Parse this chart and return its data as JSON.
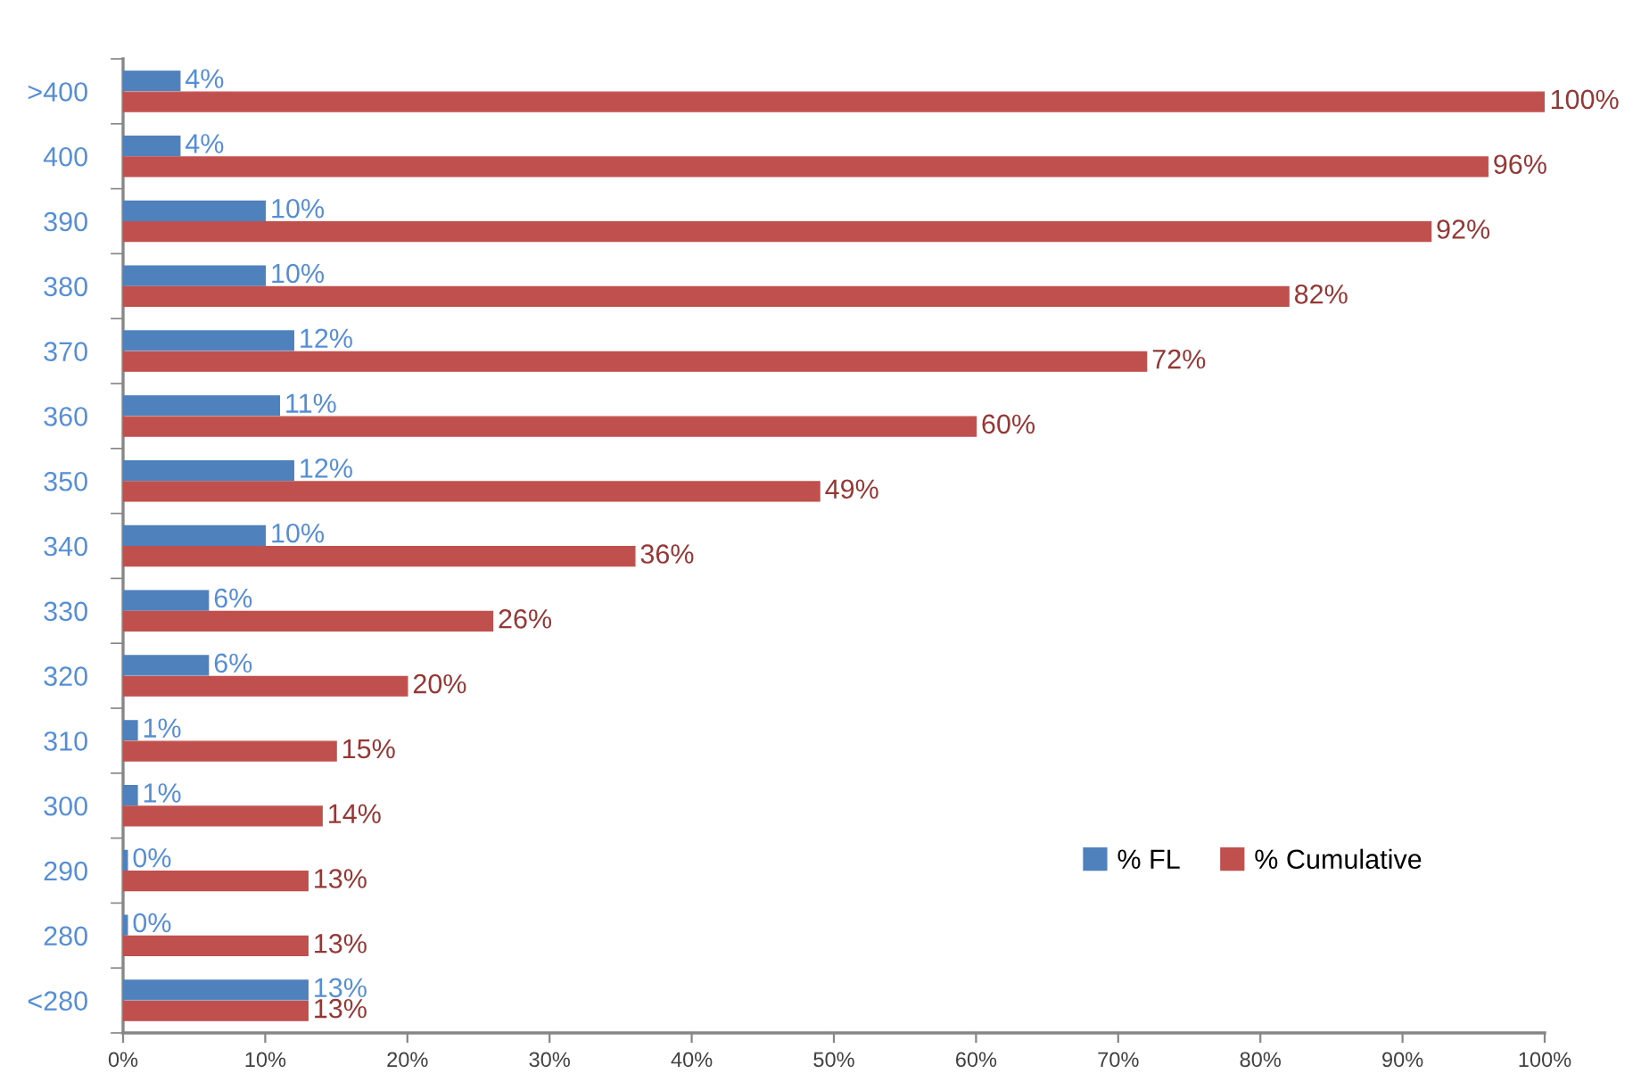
{
  "chart_data": {
    "type": "bar",
    "orientation": "horizontal",
    "categories": [
      ">400",
      "400",
      "390",
      "380",
      "370",
      "360",
      "350",
      "340",
      "330",
      "320",
      "310",
      "300",
      "290",
      "280",
      "<280"
    ],
    "series": [
      {
        "name": "% FL",
        "color": "#4f81bd",
        "values": [
          4,
          4,
          10,
          10,
          12,
          11,
          12,
          10,
          6,
          6,
          1,
          1,
          0.3,
          0.3,
          13
        ],
        "value_labels": [
          "4%",
          "4%",
          "10%",
          "10%",
          "12%",
          "11%",
          "12%",
          "10%",
          "6%",
          "6%",
          "1%",
          "1%",
          "0%",
          "0%",
          "13%"
        ]
      },
      {
        "name": "% Cumulative",
        "color": "#c0504d",
        "values": [
          100,
          96,
          92,
          82,
          72,
          60,
          49,
          36,
          26,
          20,
          15,
          14,
          13,
          13,
          13
        ],
        "value_labels": [
          "100%",
          "96%",
          "92%",
          "82%",
          "72%",
          "60%",
          "49%",
          "36%",
          "26%",
          "20%",
          "15%",
          "14%",
          "13%",
          "13%",
          "13%"
        ]
      }
    ],
    "xlim": [
      0,
      100
    ],
    "xticks": [
      {
        "value": 0,
        "label": "0%"
      },
      {
        "value": 10,
        "label": "10%"
      },
      {
        "value": 20,
        "label": "20%"
      },
      {
        "value": 30,
        "label": "30%"
      },
      {
        "value": 40,
        "label": "40%"
      },
      {
        "value": 50,
        "label": "50%"
      },
      {
        "value": 60,
        "label": "60%"
      },
      {
        "value": 70,
        "label": "70%"
      },
      {
        "value": 80,
        "label": "80%"
      },
      {
        "value": 90,
        "label": "90%"
      },
      {
        "value": 100,
        "label": "100%"
      }
    ],
    "legend": "lower right",
    "grid": false
  }
}
